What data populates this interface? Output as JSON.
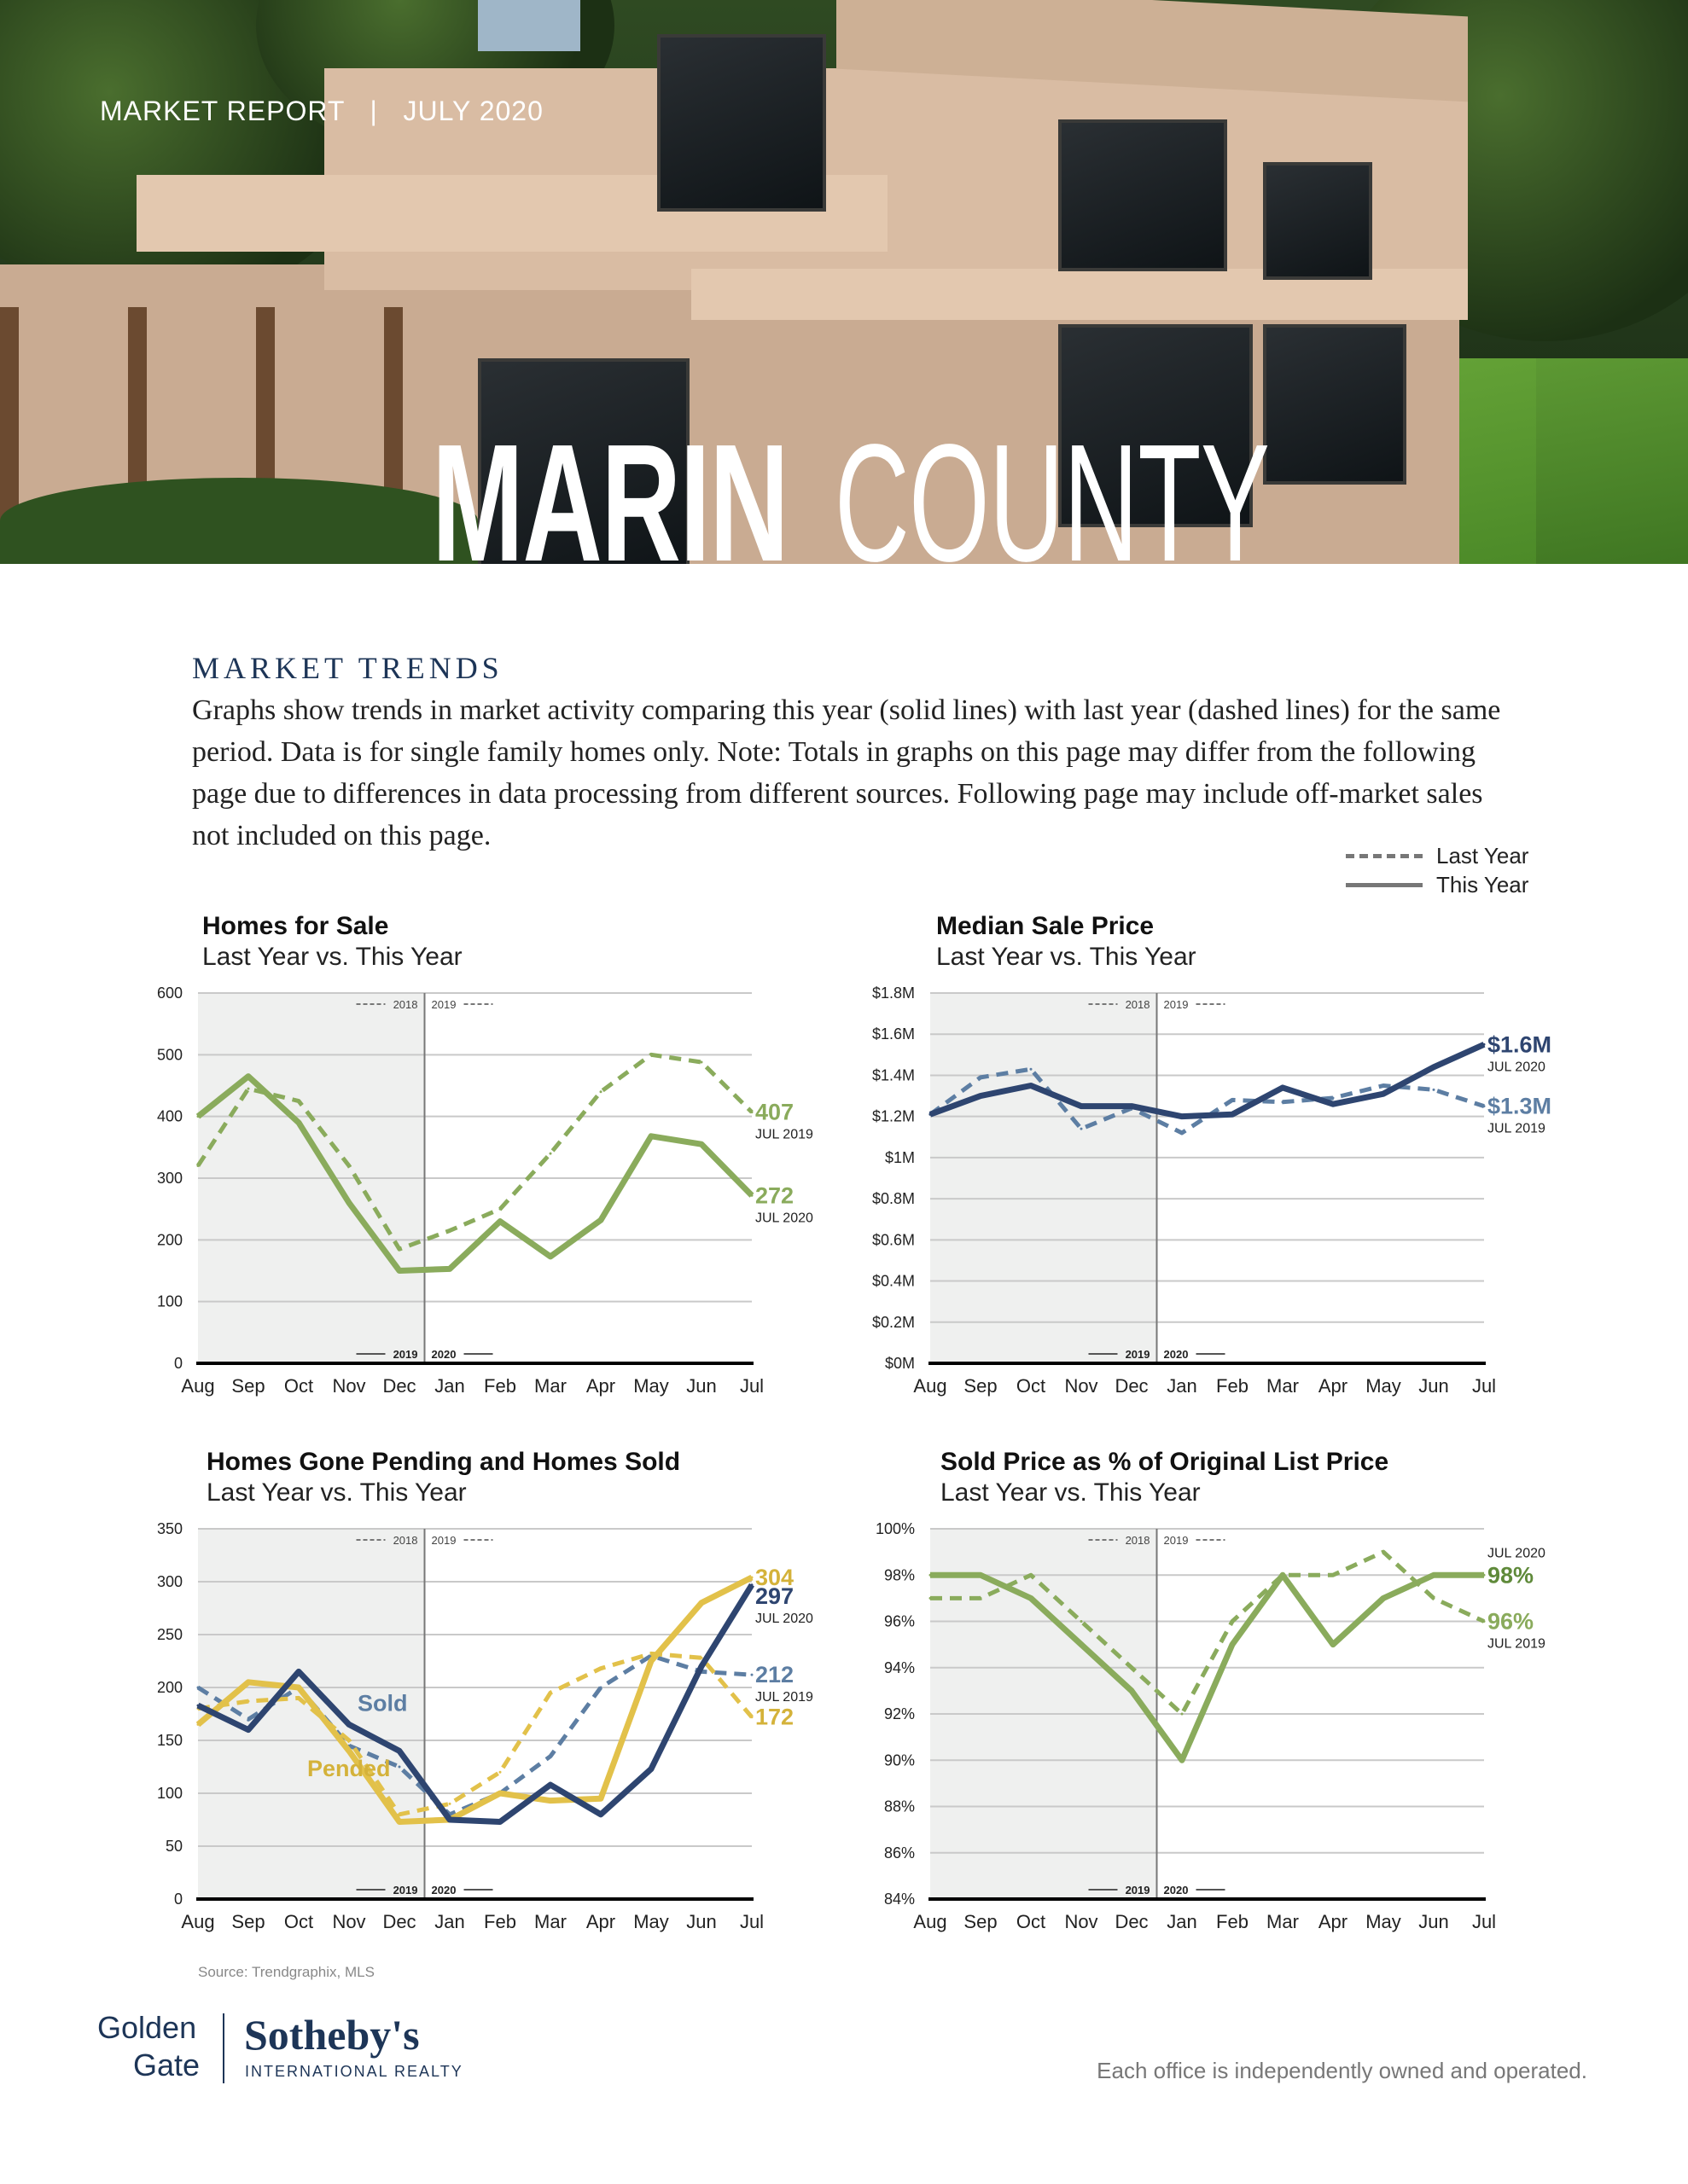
{
  "header": {
    "report_label": "MARKET REPORT",
    "separator": "|",
    "date": "JULY 2020",
    "title_bold": "MARIN",
    "title_light": "COUNTY"
  },
  "trends": {
    "heading": "MARKET TRENDS",
    "body": "Graphs show trends in market activity comparing this year (solid lines) with last year (dashed lines) for the same period. Data is for single family homes only. Note: Totals in graphs on this page may differ from the following page due to differences in data processing from different sources. Following page may include off-market sales not included on this page."
  },
  "legend": {
    "last_year": "Last Year",
    "this_year": "This Year"
  },
  "colors": {
    "green": "#8aab5c",
    "dark_green": "#5f8a3a",
    "navy": "#2e4570",
    "slate": "#5d7ea3",
    "yellow": "#e2c14a",
    "shade": "#eff0ef"
  },
  "chart_data": [
    {
      "type": "line",
      "title": "Homes for Sale",
      "subtitle": "Last Year vs. This Year",
      "categories": [
        "Aug",
        "Sep",
        "Oct",
        "Nov",
        "Dec",
        "Jan",
        "Feb",
        "Mar",
        "Apr",
        "May",
        "Jun",
        "Jul"
      ],
      "ylim": [
        0,
        600
      ],
      "yticks": [
        0,
        100,
        200,
        300,
        400,
        500,
        600
      ],
      "ytick_labels": [
        "0",
        "100",
        "200",
        "300",
        "400",
        "500",
        "600"
      ],
      "top_labels": [
        "2018",
        "2019"
      ],
      "bottom_labels": [
        "2019",
        "2020"
      ],
      "series": [
        {
          "key": "this",
          "style": "solid",
          "color": "#8aab5c",
          "values": [
            400,
            465,
            390,
            260,
            150,
            153,
            230,
            173,
            232,
            368,
            355,
            272
          ]
        },
        {
          "key": "last",
          "style": "dashed",
          "color": "#8aab5c",
          "values": [
            320,
            445,
            425,
            320,
            185,
            215,
            250,
            340,
            440,
            500,
            488,
            407
          ]
        }
      ],
      "end_labels": [
        {
          "text": "407",
          "sub": "JUL 2019",
          "y": 407,
          "color": "#8aab5c"
        },
        {
          "text": "272",
          "sub": "JUL 2020",
          "y": 272,
          "color": "#8aab5c"
        }
      ],
      "inline_labels": []
    },
    {
      "type": "line",
      "title": "Median Sale Price",
      "subtitle": "Last Year vs. This Year",
      "categories": [
        "Aug",
        "Sep",
        "Oct",
        "Nov",
        "Dec",
        "Jan",
        "Feb",
        "Mar",
        "Apr",
        "May",
        "Jun",
        "Jul"
      ],
      "ylim": [
        0,
        1.8
      ],
      "yticks": [
        0,
        0.2,
        0.4,
        0.6,
        0.8,
        1.0,
        1.2,
        1.4,
        1.6,
        1.8
      ],
      "ytick_labels": [
        "$0M",
        "$0.2M",
        "$0.4M",
        "$0.6M",
        "$0.8M",
        "$1M",
        "$1.2M",
        "$1.4M",
        "$1.6M",
        "$1.8M"
      ],
      "top_labels": [
        "2018",
        "2019"
      ],
      "bottom_labels": [
        "2019",
        "2020"
      ],
      "series": [
        {
          "key": "last",
          "style": "dashed",
          "color": "#5d7ea3",
          "values": [
            1.21,
            1.39,
            1.43,
            1.14,
            1.24,
            1.12,
            1.28,
            1.27,
            1.29,
            1.35,
            1.33,
            1.25
          ]
        },
        {
          "key": "this",
          "style": "solid",
          "color": "#2e4570",
          "values": [
            1.21,
            1.3,
            1.35,
            1.25,
            1.25,
            1.2,
            1.21,
            1.34,
            1.26,
            1.31,
            1.44,
            1.55
          ]
        }
      ],
      "end_labels": [
        {
          "text": "$1.6M",
          "sub": "JUL 2020",
          "y": 1.55,
          "color": "#2e4570"
        },
        {
          "text": "$1.3M",
          "sub": "JUL 2019",
          "y": 1.25,
          "color": "#5d7ea3"
        }
      ],
      "inline_labels": []
    },
    {
      "type": "line",
      "title": "Homes Gone Pending and Homes Sold",
      "subtitle": "Last Year vs. This Year",
      "categories": [
        "Aug",
        "Sep",
        "Oct",
        "Nov",
        "Dec",
        "Jan",
        "Feb",
        "Mar",
        "Apr",
        "May",
        "Jun",
        "Jul"
      ],
      "ylim": [
        0,
        350
      ],
      "yticks": [
        0,
        50,
        100,
        150,
        200,
        250,
        300,
        350
      ],
      "ytick_labels": [
        "0",
        "50",
        "100",
        "150",
        "200",
        "250",
        "300",
        "350"
      ],
      "top_labels": [
        "2018",
        "2019"
      ],
      "bottom_labels": [
        "2019",
        "2020"
      ],
      "series": [
        {
          "key": "sold_last",
          "name": "Sold",
          "style": "dashed",
          "color": "#5d7ea3",
          "values": [
            200,
            170,
            200,
            145,
            125,
            80,
            100,
            135,
            200,
            230,
            215,
            212
          ]
        },
        {
          "key": "pended_last",
          "name": "Pended",
          "style": "dashed",
          "color": "#e2c14a",
          "values": [
            180,
            187,
            190,
            150,
            80,
            90,
            120,
            195,
            218,
            232,
            228,
            172
          ]
        },
        {
          "key": "pended_this",
          "name": "Pended",
          "style": "solid",
          "color": "#e2c14a",
          "values": [
            165,
            205,
            200,
            140,
            73,
            75,
            100,
            93,
            95,
            225,
            280,
            304
          ]
        },
        {
          "key": "sold_this",
          "name": "Sold",
          "style": "solid",
          "color": "#2e4570",
          "values": [
            183,
            160,
            215,
            165,
            140,
            75,
            73,
            108,
            80,
            123,
            220,
            297
          ]
        }
      ],
      "end_labels": [
        {
          "text": "304",
          "sub": "",
          "y": 304,
          "color": "#d4b23a"
        },
        {
          "text": "297",
          "sub": "JUL 2020",
          "y": 297,
          "color": "#2e4570"
        },
        {
          "text": "212",
          "sub": "JUL 2019",
          "y": 212,
          "color": "#5d7ea3"
        },
        {
          "text": "172",
          "sub": "",
          "y": 172,
          "color": "#d4b23a"
        }
      ],
      "inline_labels": [
        {
          "text": "Sold",
          "x": "Nov",
          "y": 178,
          "color": "#5d7ea3"
        },
        {
          "text": "Pended",
          "x": "Oct",
          "y": 116,
          "color": "#d4b23a"
        }
      ]
    },
    {
      "type": "line",
      "title": "Sold Price as % of Original List Price",
      "subtitle": "Last Year vs. This Year",
      "categories": [
        "Aug",
        "Sep",
        "Oct",
        "Nov",
        "Dec",
        "Jan",
        "Feb",
        "Mar",
        "Apr",
        "May",
        "Jun",
        "Jul"
      ],
      "ylim": [
        84,
        100
      ],
      "yticks": [
        84,
        86,
        88,
        90,
        92,
        94,
        96,
        98,
        100
      ],
      "ytick_labels": [
        "84%",
        "86%",
        "88%",
        "90%",
        "92%",
        "94%",
        "96%",
        "98%",
        "100%"
      ],
      "top_labels": [
        "2018",
        "2019"
      ],
      "bottom_labels": [
        "2019",
        "2020"
      ],
      "series": [
        {
          "key": "last",
          "style": "dashed",
          "color": "#8aab5c",
          "values": [
            97,
            97,
            98,
            96,
            94,
            92,
            96,
            98,
            98,
            99,
            97,
            96
          ]
        },
        {
          "key": "this",
          "style": "solid",
          "color": "#8aab5c",
          "values": [
            98,
            98,
            97,
            95,
            93,
            90,
            95,
            98,
            95,
            97,
            98,
            98
          ]
        }
      ],
      "end_labels": [
        {
          "text": "98%",
          "sub": "JUL 2020",
          "sub_position": "above",
          "y": 98,
          "color": "#5f8a3a"
        },
        {
          "text": "96%",
          "sub": "JUL 2019",
          "y": 96,
          "color": "#8aab5c"
        }
      ],
      "inline_labels": []
    }
  ],
  "source": "Source: Trendgraphix, MLS",
  "logo": {
    "line1": "Golden",
    "line2": "Gate",
    "brand": "Sotheby's",
    "tagline": "INTERNATIONAL REALTY"
  },
  "footer_note": "Each office is independently owned and operated."
}
